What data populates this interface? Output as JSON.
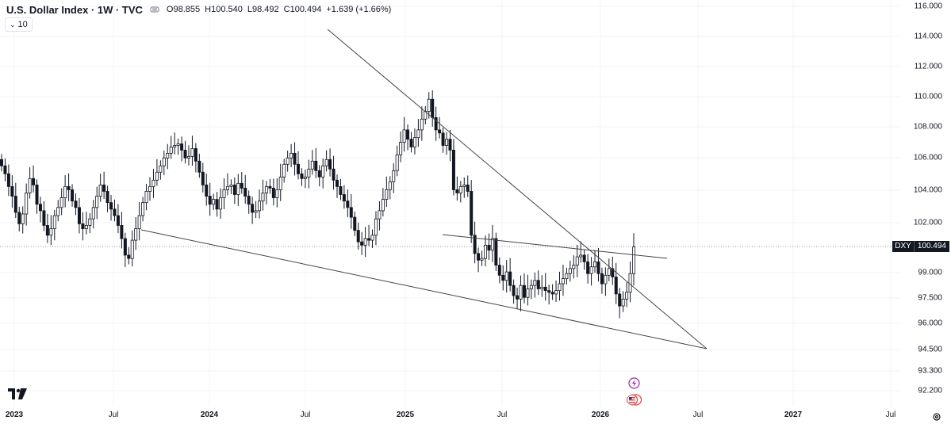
{
  "header": {
    "title": "U.S. Dollar Index · 1W · TVC",
    "open_label": "O",
    "open": "98.855",
    "high_label": "H",
    "high": "100.540",
    "low_label": "L",
    "low": "98.492",
    "close_label": "C",
    "close": "100.494",
    "change": "+1.639 (+1.66%)"
  },
  "indicator_toggle": {
    "value": "10"
  },
  "price_badge": {
    "symbol": "DXY",
    "price": "100.494"
  },
  "price_axis": [
    "116.000",
    "114.000",
    "112.000",
    "110.000",
    "108.000",
    "106.000",
    "104.000",
    "102.000",
    "99.000",
    "97.500",
    "96.000",
    "94.500",
    "93.300",
    "92.200"
  ],
  "time_axis": [
    {
      "label": "2023",
      "year": true
    },
    {
      "label": "Jul",
      "year": false
    },
    {
      "label": "2024",
      "year": true
    },
    {
      "label": "Jul",
      "year": false
    },
    {
      "label": "2025",
      "year": true
    },
    {
      "label": "Jul",
      "year": false
    },
    {
      "label": "2026",
      "year": true
    },
    {
      "label": "Jul",
      "year": false
    },
    {
      "label": "2027",
      "year": true
    },
    {
      "label": "Jul",
      "year": false
    }
  ],
  "colors": {
    "up": "#131722",
    "down": "#131722",
    "trendline": "#444444",
    "grid": "#f0f3fa",
    "event_purple": "#9c27b0",
    "event_red": "#e53935"
  },
  "chart_data": {
    "type": "candlestick",
    "title": "U.S. Dollar Index · 1W · TVC",
    "x_range": [
      "2023-01",
      "2027-09"
    ],
    "y_log": true,
    "closes": [
      105.5,
      105.0,
      104.2,
      103.6,
      102.6,
      101.9,
      102.5,
      103.8,
      104.7,
      104.3,
      103.1,
      102.7,
      101.8,
      101.2,
      101.6,
      102.4,
      102.9,
      103.5,
      104.2,
      104.0,
      103.3,
      102.9,
      101.9,
      101.6,
      101.8,
      102.2,
      102.9,
      103.6,
      104.3,
      103.9,
      103.2,
      102.8,
      102.4,
      101.8,
      101.0,
      100.0,
      99.8,
      100.9,
      101.6,
      102.4,
      103.2,
      103.9,
      104.2,
      104.6,
      105.1,
      105.5,
      106.0,
      106.3,
      106.7,
      106.8,
      106.9,
      106.5,
      106.0,
      106.1,
      106.6,
      105.8,
      105.1,
      104.3,
      103.6,
      103.1,
      103.4,
      102.8,
      103.5,
      104.0,
      104.2,
      104.3,
      103.7,
      104.4,
      104.1,
      103.6,
      103.1,
      102.6,
      102.7,
      103.3,
      103.8,
      104.2,
      104.1,
      103.5,
      104.0,
      104.8,
      105.6,
      106.0,
      106.3,
      105.6,
      105.0,
      104.7,
      104.8,
      105.3,
      105.8,
      105.2,
      104.8,
      105.5,
      105.9,
      105.3,
      104.6,
      104.2,
      103.7,
      103.3,
      102.9,
      102.3,
      101.5,
      100.8,
      100.6,
      101.0,
      100.9,
      101.2,
      102.2,
      102.7,
      103.4,
      104.0,
      104.5,
      105.2,
      106.2,
      107.0,
      107.8,
      107.2,
      106.7,
      107.3,
      107.8,
      108.5,
      109.0,
      109.8,
      108.6,
      107.8,
      107.6,
      106.8,
      107.2,
      106.5,
      104.0,
      103.8,
      104.2,
      104.3,
      103.9,
      101.2,
      100.1,
      99.7,
      99.8,
      100.6,
      100.3,
      101.0,
      99.4,
      98.8,
      98.5,
      99.0,
      98.2,
      97.6,
      97.4,
      98.2,
      97.5,
      98.0,
      98.2,
      98.5,
      98.0,
      98.1,
      97.9,
      97.8,
      97.7,
      97.9,
      98.3,
      98.6,
      98.9,
      99.2,
      99.4,
      99.9,
      100.0,
      99.6,
      98.9,
      99.3,
      99.6,
      98.9,
      98.3,
      98.8,
      99.2,
      98.7,
      97.7,
      97.0,
      97.4,
      97.8,
      98.9,
      100.494
    ],
    "trendlines": [
      {
        "name": "falling-resistance",
        "from": [
          "2024-11",
          114.5
        ],
        "to": [
          "2026-07",
          94.6
        ]
      },
      {
        "name": "support",
        "from": [
          "2023-09",
          101.4
        ],
        "to": [
          "2026-07",
          94.6
        ]
      },
      {
        "name": "upper-channel",
        "from": [
          "2025-03",
          101.0
        ],
        "to": [
          "2026-04",
          99.8
        ]
      }
    ]
  }
}
